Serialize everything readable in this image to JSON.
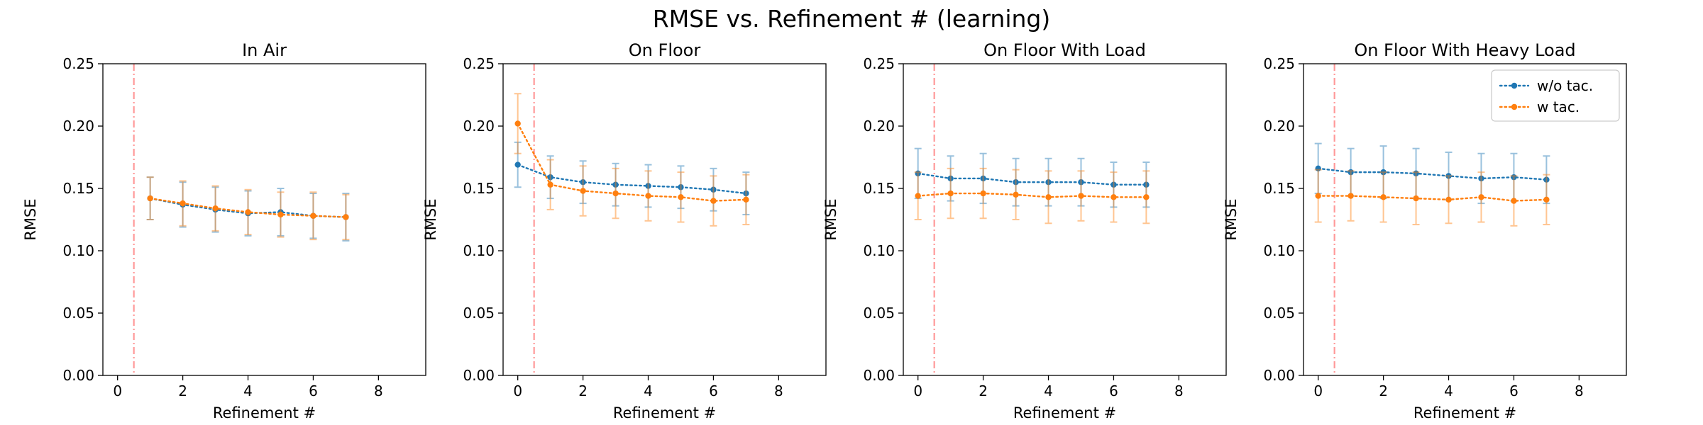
{
  "suptitle": "RMSE vs. Refinement # (learning)",
  "colors": {
    "wo_tac": "#1f77b4",
    "w_tac": "#ff7f0e",
    "vline": "#ff9999"
  },
  "legend": {
    "placement": "upper right",
    "panel": 3,
    "entries": [
      "w/o tac.",
      "w tac."
    ]
  },
  "chart_data": [
    {
      "type": "line",
      "title": "In Air",
      "xlabel": "Refinement #",
      "ylabel": "RMSE",
      "xlim": [
        -0.45,
        9.45
      ],
      "ylim": [
        0,
        0.25
      ],
      "xticks": [
        0,
        2,
        4,
        6,
        8
      ],
      "yticks": [
        "0.00",
        "0.05",
        "0.10",
        "0.15",
        "0.20",
        "0.25"
      ],
      "vline_x": 0.5,
      "grid": false,
      "series": [
        {
          "name": "w/o tac.",
          "x": [
            1,
            2,
            3,
            4,
            5,
            6,
            7
          ],
          "values": [
            0.142,
            0.137,
            0.133,
            0.13,
            0.131,
            0.128,
            0.127
          ],
          "error": [
            0.017,
            0.018,
            0.018,
            0.018,
            0.019,
            0.018,
            0.019
          ]
        },
        {
          "name": "w tac.",
          "x": [
            1,
            2,
            3,
            4,
            5,
            6,
            7
          ],
          "values": [
            0.142,
            0.138,
            0.134,
            0.131,
            0.129,
            0.128,
            0.127
          ],
          "error": [
            0.017,
            0.018,
            0.018,
            0.018,
            0.018,
            0.019,
            0.018
          ]
        }
      ]
    },
    {
      "type": "line",
      "title": "On Floor",
      "xlabel": "Refinement #",
      "ylabel": "RMSE",
      "xlim": [
        -0.45,
        9.45
      ],
      "ylim": [
        0,
        0.25
      ],
      "xticks": [
        0,
        2,
        4,
        6,
        8
      ],
      "yticks": [
        "0.00",
        "0.05",
        "0.10",
        "0.15",
        "0.20",
        "0.25"
      ],
      "vline_x": 0.5,
      "grid": false,
      "series": [
        {
          "name": "w/o tac.",
          "x": [
            0,
            1,
            2,
            3,
            4,
            5,
            6,
            7
          ],
          "values": [
            0.169,
            0.159,
            0.155,
            0.153,
            0.152,
            0.151,
            0.149,
            0.146
          ],
          "error": [
            0.018,
            0.017,
            0.017,
            0.017,
            0.017,
            0.017,
            0.017,
            0.017
          ]
        },
        {
          "name": "w tac.",
          "x": [
            0,
            1,
            2,
            3,
            4,
            5,
            6,
            7
          ],
          "values": [
            0.202,
            0.153,
            0.148,
            0.146,
            0.144,
            0.143,
            0.14,
            0.141
          ],
          "error": [
            0.024,
            0.02,
            0.02,
            0.02,
            0.02,
            0.02,
            0.02,
            0.02
          ]
        }
      ]
    },
    {
      "type": "line",
      "title": "On Floor With Load",
      "xlabel": "Refinement #",
      "ylabel": "RMSE",
      "xlim": [
        -0.45,
        9.45
      ],
      "ylim": [
        0,
        0.25
      ],
      "xticks": [
        0,
        2,
        4,
        6,
        8
      ],
      "yticks": [
        "0.00",
        "0.05",
        "0.10",
        "0.15",
        "0.20",
        "0.25"
      ],
      "vline_x": 0.5,
      "grid": false,
      "series": [
        {
          "name": "w/o tac.",
          "x": [
            0,
            1,
            2,
            3,
            4,
            5,
            6,
            7
          ],
          "values": [
            0.162,
            0.158,
            0.158,
            0.155,
            0.155,
            0.155,
            0.153,
            0.153
          ],
          "error": [
            0.02,
            0.018,
            0.02,
            0.019,
            0.019,
            0.019,
            0.018,
            0.018
          ]
        },
        {
          "name": "w tac.",
          "x": [
            0,
            1,
            2,
            3,
            4,
            5,
            6,
            7
          ],
          "values": [
            0.144,
            0.146,
            0.146,
            0.145,
            0.143,
            0.144,
            0.143,
            0.143
          ],
          "error": [
            0.019,
            0.02,
            0.02,
            0.02,
            0.021,
            0.02,
            0.02,
            0.021
          ]
        }
      ]
    },
    {
      "type": "line",
      "title": "On Floor With Heavy Load",
      "xlabel": "Refinement #",
      "ylabel": "RMSE",
      "xlim": [
        -0.45,
        9.45
      ],
      "ylim": [
        0,
        0.25
      ],
      "xticks": [
        0,
        2,
        4,
        6,
        8
      ],
      "yticks": [
        "0.00",
        "0.05",
        "0.10",
        "0.15",
        "0.20",
        "0.25"
      ],
      "vline_x": 0.5,
      "grid": false,
      "series": [
        {
          "name": "w/o tac.",
          "x": [
            0,
            1,
            2,
            3,
            4,
            5,
            6,
            7
          ],
          "values": [
            0.166,
            0.163,
            0.163,
            0.162,
            0.16,
            0.158,
            0.159,
            0.157
          ],
          "error": [
            0.02,
            0.019,
            0.021,
            0.02,
            0.019,
            0.02,
            0.019,
            0.019
          ]
        },
        {
          "name": "w tac.",
          "x": [
            0,
            1,
            2,
            3,
            4,
            5,
            6,
            7
          ],
          "values": [
            0.144,
            0.144,
            0.143,
            0.142,
            0.141,
            0.143,
            0.14,
            0.141
          ],
          "error": [
            0.021,
            0.02,
            0.02,
            0.021,
            0.019,
            0.02,
            0.02,
            0.02
          ]
        }
      ]
    }
  ]
}
